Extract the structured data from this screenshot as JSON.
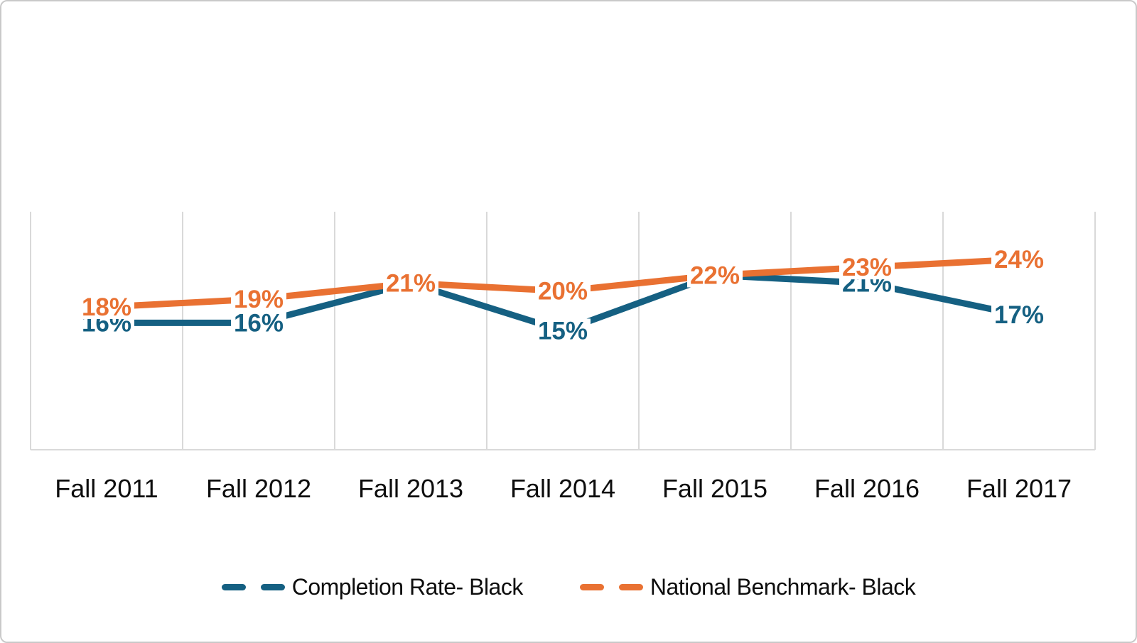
{
  "chart_data": {
    "type": "line",
    "title": "",
    "categories": [
      "Fall 2011",
      "Fall 2012",
      "Fall 2013",
      "Fall 2014",
      "Fall 2015",
      "Fall 2016",
      "Fall 2017"
    ],
    "series": [
      {
        "name": "Completion Rate- Black",
        "color": "#156082",
        "values": [
          16,
          16,
          21,
          15,
          22,
          21,
          17
        ]
      },
      {
        "name": "National Benchmark- Black",
        "color": "#E97132",
        "values": [
          18,
          19,
          21,
          20,
          22,
          23,
          24
        ]
      }
    ],
    "data_label_suffix": "%",
    "data_labels_visible": true,
    "ylim": [
      0,
      30
    ],
    "y_axis_labels_visible": false,
    "grid": {
      "vertical": true,
      "horizontal": false,
      "color": "#D9D9D9"
    },
    "axis_line_color": "#D9D9D9",
    "x_label_color": "#0d0d0d",
    "legend_position": "bottom"
  }
}
